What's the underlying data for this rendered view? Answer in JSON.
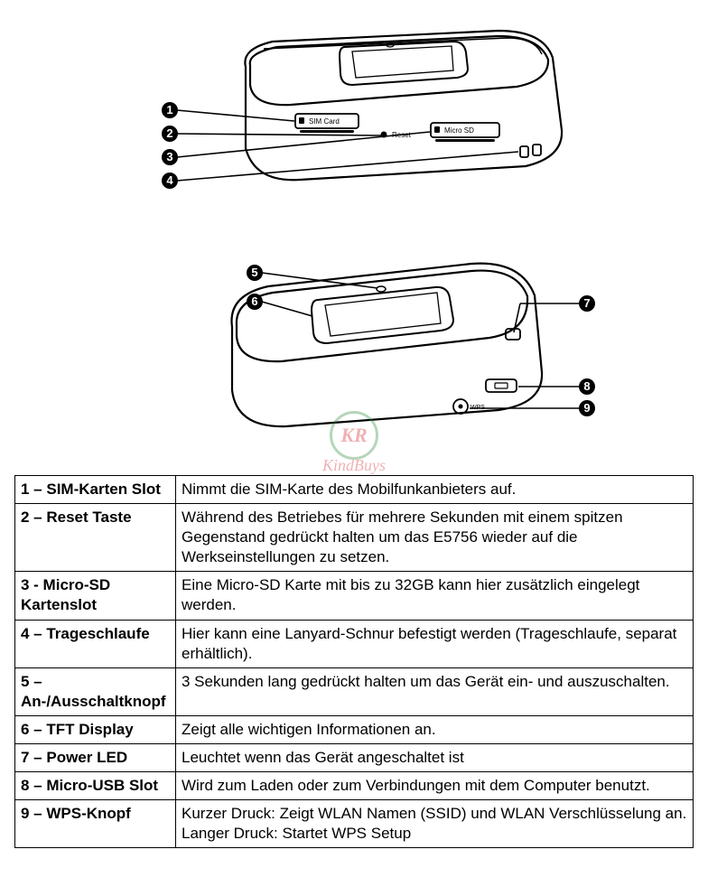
{
  "diagram1": {
    "callouts": [
      "1",
      "2",
      "3",
      "4"
    ],
    "labels": {
      "sim": "SIM Card",
      "reset": "Reset",
      "microsd": "Micro SD"
    }
  },
  "diagram2": {
    "callouts": [
      "5",
      "6",
      "7",
      "8",
      "9"
    ],
    "labels": {
      "wps": "WPS"
    }
  },
  "watermark": {
    "initials": "KR",
    "text": "KindBuys"
  },
  "table": {
    "rows": [
      {
        "label": "1 – SIM-Karten Slot",
        "desc": "Nimmt die SIM-Karte des Mobilfunkanbieters auf."
      },
      {
        "label": "2 – Reset Taste",
        "desc": "Während des Betriebes für mehrere Sekunden mit einem spitzen Gegenstand gedrückt halten um das E5756 wieder auf die Werkseinstellungen zu setzen."
      },
      {
        "label": "3 - Micro-SD Kartenslot",
        "desc": "Eine Micro-SD Karte mit bis zu 32GB kann hier zusätzlich eingelegt werden."
      },
      {
        "label": "4 – Trageschlaufe",
        "desc": "Hier kann eine Lanyard-Schnur befestigt werden (Trageschlaufe, separat erhältlich)."
      },
      {
        "label": "5 – An-/Ausschaltknopf",
        "desc": "3 Sekunden lang gedrückt halten um das Gerät ein- und auszuschalten."
      },
      {
        "label": "6 – TFT Display",
        "desc": "Zeigt alle wichtigen Informationen an."
      },
      {
        "label": "7 – Power LED",
        "desc": "Leuchtet wenn das Gerät angeschaltet ist"
      },
      {
        "label": "8 – Micro-USB Slot",
        "desc": "Wird zum Laden oder zum Verbindungen mit dem Computer benutzt."
      },
      {
        "label": "9 – WPS-Knopf",
        "desc": "Kurzer Druck: Zeigt WLAN Namen (SSID) und WLAN Verschlüsselung an. Langer Druck: Startet WPS Setup"
      }
    ]
  },
  "style": {
    "stroke": "#000000",
    "fill_body": "#ffffff",
    "fill_top": "#ffffff",
    "table_font_size": 17,
    "callout_radius": 9
  }
}
